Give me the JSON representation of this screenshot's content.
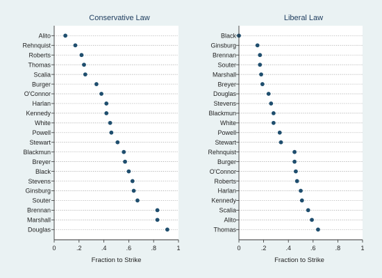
{
  "chart_data": [
    {
      "type": "scatter",
      "title": "Conservative Law",
      "xlabel": "Fraction to Strike",
      "ylabel": "",
      "xlim": [
        0,
        1
      ],
      "xticks": [
        "0",
        ".2",
        ".4",
        ".6",
        ".8",
        "1"
      ],
      "grid": "dotted horizontal line per category",
      "categories": [
        "Alito",
        "Rehnquist",
        "Roberts",
        "Thomas",
        "Scalia",
        "Burger",
        "O'Connor",
        "Harlan",
        "Kennedy",
        "White",
        "Powell",
        "Stewart",
        "Blackmun",
        "Breyer",
        "Black",
        "Stevens",
        "Ginsburg",
        "Souter",
        "Brennan",
        "Marshall",
        "Douglas"
      ],
      "values": [
        0.09,
        0.17,
        0.22,
        0.24,
        0.25,
        0.34,
        0.38,
        0.42,
        0.42,
        0.45,
        0.46,
        0.51,
        0.56,
        0.57,
        0.6,
        0.63,
        0.64,
        0.67,
        0.83,
        0.83,
        0.91
      ]
    },
    {
      "type": "scatter",
      "title": "Liberal Law",
      "xlabel": "Fraction to Strike",
      "ylabel": "",
      "xlim": [
        0,
        1
      ],
      "xticks": [
        "0",
        ".2",
        ".4",
        ".6",
        ".8",
        "1"
      ],
      "grid": "dotted horizontal line per category",
      "categories": [
        "Black",
        "Ginsburg",
        "Brennan",
        "Souter",
        "Marshall",
        "Breyer",
        "Douglas",
        "Stevens",
        "Blackmun",
        "White",
        "Powell",
        "Stewart",
        "Rehnquist",
        "Burger",
        "O'Connor",
        "Roberts",
        "Harlan",
        "Kennedy",
        "Scalia",
        "Alito",
        "Thomas"
      ],
      "values": [
        0.0,
        0.15,
        0.17,
        0.17,
        0.18,
        0.19,
        0.24,
        0.26,
        0.28,
        0.28,
        0.33,
        0.34,
        0.45,
        0.45,
        0.46,
        0.47,
        0.5,
        0.51,
        0.56,
        0.59,
        0.64
      ]
    }
  ],
  "colors": {
    "background": "#eaf2f3",
    "plot_area": "#ffffff",
    "marker": "#1f4e6e",
    "title": "#1b3a5c"
  }
}
